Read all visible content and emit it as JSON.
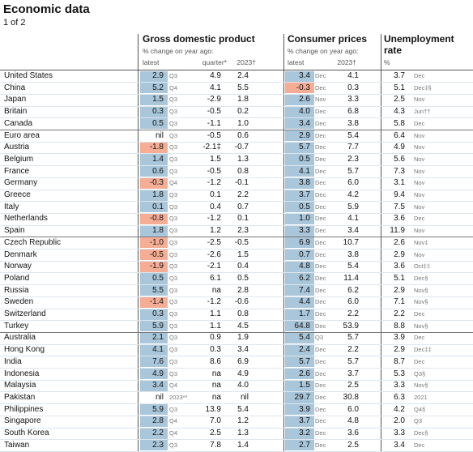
{
  "header": {
    "title": "Economic data",
    "subtitle": "1 of 2"
  },
  "columns": {
    "gdp": {
      "title": "Gross domestic product",
      "note": "% change on year ago:",
      "latest": "latest",
      "quarter": "quarter*",
      "year": "2023†"
    },
    "cpi": {
      "title": "Consumer prices",
      "note": "% change on year ago:",
      "latest": "latest",
      "year": "2023†"
    },
    "unemployment": {
      "title": "Unemployment rate",
      "unit": "%"
    }
  },
  "table": {
    "groups": [
      {
        "rows": [
          [
            "United States",
            "2.9",
            "Q3",
            "4.9",
            "2.4",
            "3.4",
            "Dec",
            "4.1",
            "3.7",
            "Dec"
          ],
          [
            "China",
            "5.2",
            "Q4",
            "4.1",
            "5.5",
            "-0.3",
            "Dec",
            "0.3",
            "5.1",
            "Dec‡§"
          ],
          [
            "Japan",
            "1.5",
            "Q3",
            "-2.9",
            "1.8",
            "2.6",
            "Nov",
            "3.3",
            "2.5",
            "Nov"
          ],
          [
            "Britain",
            "0.3",
            "Q3",
            "-0.5",
            "0.2",
            "4.0",
            "Dec",
            "6.8",
            "4.3",
            "Jun††"
          ],
          [
            "Canada",
            "0.5",
            "Q3",
            "-1.1",
            "1.0",
            "3.4",
            "Dec",
            "3.8",
            "5.8",
            "Dec"
          ]
        ]
      },
      {
        "rows": [
          [
            "Euro area",
            "nil",
            "Q3",
            "-0.5",
            "0.6",
            "2.9",
            "Dec",
            "5.4",
            "6.4",
            "Nov"
          ],
          [
            "Austria",
            "-1.8",
            "Q3",
            "-2.1‡",
            "-0.7",
            "5.7",
            "Dec",
            "7.7",
            "4.9",
            "Nov"
          ],
          [
            "Belgium",
            "1.4",
            "Q3",
            "1.5",
            "1.3",
            "0.5",
            "Dec",
            "2.3",
            "5.6",
            "Nov"
          ],
          [
            "France",
            "0.6",
            "Q3",
            "-0.5",
            "0.8",
            "4.1",
            "Dec",
            "5.7",
            "7.3",
            "Nov"
          ],
          [
            "Germany",
            "-0.3",
            "Q4",
            "-1.2",
            "-0.1",
            "3.8",
            "Dec",
            "6.0",
            "3.1",
            "Nov"
          ],
          [
            "Greece",
            "1.8",
            "Q3",
            "0.1",
            "2.2",
            "3.7",
            "Dec",
            "4.2",
            "9.4",
            "Nov"
          ],
          [
            "Italy",
            "0.1",
            "Q3",
            "0.4",
            "0.7",
            "0.5",
            "Dec",
            "5.9",
            "7.5",
            "Nov"
          ],
          [
            "Netherlands",
            "-0.8",
            "Q3",
            "-1.2",
            "0.1",
            "1.0",
            "Dec",
            "4.1",
            "3.6",
            "Dec"
          ],
          [
            "Spain",
            "1.8",
            "Q3",
            "1.2",
            "2.3",
            "3.3",
            "Dec",
            "3.4",
            "11.9",
            "Nov"
          ]
        ]
      },
      {
        "rows": [
          [
            "Czech Republic",
            "-1.0",
            "Q3",
            "-2.5",
            "-0.5",
            "6.9",
            "Dec",
            "10.7",
            "2.6",
            "Nov‡"
          ],
          [
            "Denmark",
            "-0.5",
            "Q3",
            "-2.6",
            "1.5",
            "0.7",
            "Dec",
            "3.8",
            "2.9",
            "Nov"
          ],
          [
            "Norway",
            "-1.9",
            "Q3",
            "-2.1",
            "0.4",
            "4.8",
            "Dec",
            "5.4",
            "3.6",
            "Oct‡‡"
          ],
          [
            "Poland",
            "0.5",
            "Q3",
            "6.1",
            "0.5",
            "6.2",
            "Dec",
            "11.4",
            "5.1",
            "Dec§"
          ],
          [
            "Russia",
            "5.5",
            "Q3",
            "na",
            "2.8",
            "7.4",
            "Dec",
            "6.2",
            "2.9",
            "Nov§"
          ],
          [
            "Sweden",
            "-1.4",
            "Q3",
            "-1.2",
            "-0.6",
            "4.4",
            "Dec",
            "6.0",
            "7.1",
            "Nov§"
          ],
          [
            "Switzerland",
            "0.3",
            "Q3",
            "1.1",
            "0.8",
            "1.7",
            "Dec",
            "2.2",
            "2.2",
            "Dec"
          ],
          [
            "Turkey",
            "5.9",
            "Q3",
            "1.1",
            "4.5",
            "64.8",
            "Dec",
            "53.9",
            "8.8",
            "Nov§"
          ]
        ]
      },
      {
        "rows": [
          [
            "Australia",
            "2.1",
            "Q3",
            "0.9",
            "1.9",
            "5.4",
            "Q3",
            "5.7",
            "3.9",
            "Dec"
          ],
          [
            "Hong Kong",
            "4.1",
            "Q3",
            "0.3",
            "3.4",
            "2.4",
            "Dec",
            "2.2",
            "2.9",
            "Dec‡‡"
          ],
          [
            "India",
            "7.6",
            "Q3",
            "8.6",
            "6.9",
            "5.7",
            "Dec",
            "5.7",
            "8.7",
            "Dec"
          ],
          [
            "Indonesia",
            "4.9",
            "Q3",
            "na",
            "4.9",
            "2.6",
            "Dec",
            "3.7",
            "5.3",
            "Q3§"
          ],
          [
            "Malaysia",
            "3.4",
            "Q4",
            "na",
            "4.0",
            "1.5",
            "Dec",
            "2.5",
            "3.3",
            "Nov§"
          ],
          [
            "Pakistan",
            "nil",
            "2023**",
            "na",
            "nil",
            "29.7",
            "Dec",
            "30.8",
            "6.3",
            "2021"
          ],
          [
            "Philippines",
            "5.9",
            "Q3",
            "13.9",
            "5.4",
            "3.9",
            "Dec",
            "6.0",
            "4.2",
            "Q4§"
          ],
          [
            "Singapore",
            "2.8",
            "Q4",
            "7.0",
            "1.2",
            "3.7",
            "Dec",
            "4.8",
            "2.0",
            "Q3"
          ],
          [
            "South Korea",
            "2.2",
            "Q4",
            "2.5",
            "1.3",
            "3.2",
            "Dec",
            "3.6",
            "3.3",
            "Dec§"
          ],
          [
            "Taiwan",
            "2.3",
            "Q3",
            "7.8",
            "1.4",
            "2.7",
            "Dec",
            "2.5",
            "3.4",
            "Dec"
          ]
        ]
      }
    ]
  }
}
